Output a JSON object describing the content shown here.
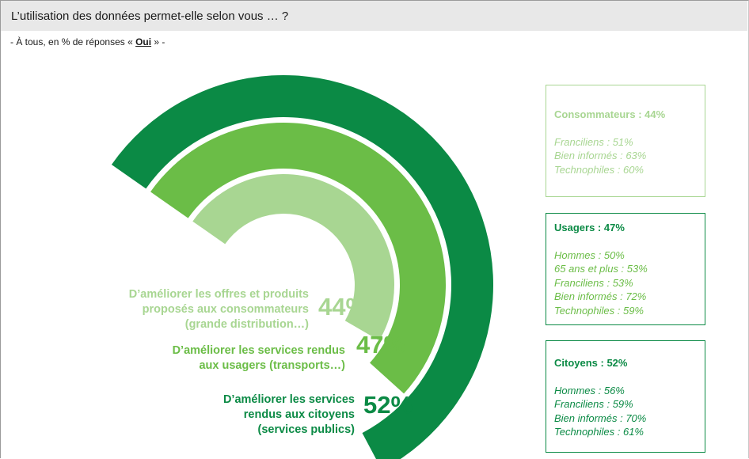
{
  "header": {
    "title": "L’utilisation des données permet-elle selon vous … ?",
    "subtitle_prefix": "- À tous, en % de réponses « ",
    "subtitle_bold": "Oui",
    "subtitle_suffix": " » -"
  },
  "chart_data": {
    "type": "radial-bar",
    "series": [
      {
        "label_lines": [
          "D’améliorer les offres et produits",
          "proposés aux consommateurs",
          "(grande distribution…)"
        ],
        "value": 44,
        "value_label": "44%",
        "color": "#a8d692"
      },
      {
        "label_lines": [
          "D’améliorer les services rendus",
          "aux usagers (transports…)"
        ],
        "value": 47,
        "value_label": "47%",
        "color": "#6bbd47"
      },
      {
        "label_lines": [
          "D’améliorer les services",
          "rendus aux citoyens",
          "(services publics)"
        ],
        "value": 52,
        "value_label": "52%",
        "color": "#0b8a45"
      }
    ]
  },
  "boxes": [
    {
      "title": "Consommateurs : 44%",
      "items": [
        "Franciliens : 51%",
        "Bien informés : 63%",
        "Technophiles : 60%"
      ]
    },
    {
      "title": "Usagers : 47%",
      "items": [
        "Hommes : 50%",
        "65 ans et plus : 53%",
        "Franciliens : 53%",
        "Bien informés : 72%",
        "Technophiles : 59%"
      ]
    },
    {
      "title": "Citoyens : 52%",
      "items": [
        "Hommes : 56%",
        "Franciliens : 59%",
        "Bien informés : 70%",
        "Technophiles : 61%"
      ]
    }
  ]
}
